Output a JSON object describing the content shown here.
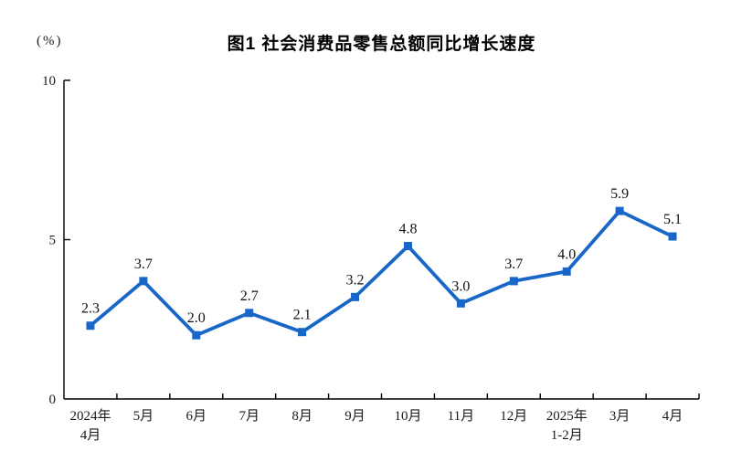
{
  "header": {
    "title": "图1 社会消费品零售总额同比增长速度",
    "unit_label": "(%)"
  },
  "chart_data": {
    "type": "line",
    "title": "图1 社会消费品零售总额同比增长速度",
    "unit": "(%)",
    "categories": [
      [
        "2024年",
        "4月"
      ],
      [
        "5月"
      ],
      [
        "6月"
      ],
      [
        "7月"
      ],
      [
        "8月"
      ],
      [
        "9月"
      ],
      [
        "10月"
      ],
      [
        "11月"
      ],
      [
        "12月"
      ],
      [
        "2025年",
        "1-2月"
      ],
      [
        "3月"
      ],
      [
        "4月"
      ]
    ],
    "values": [
      2.3,
      3.7,
      2.0,
      2.7,
      2.1,
      3.2,
      4.8,
      3.0,
      3.7,
      4.0,
      5.9,
      5.1
    ],
    "data_labels": [
      "2.3",
      "3.7",
      "2.0",
      "2.7",
      "2.1",
      "3.2",
      "4.8",
      "3.0",
      "3.7",
      "4.0",
      "5.9",
      "5.1"
    ],
    "xlabel": "",
    "ylabel": "(%)",
    "ylim": [
      0,
      10
    ],
    "yticks": [
      0,
      5,
      10
    ],
    "grid": false,
    "legend": "none",
    "marker": "square",
    "line_color": "#1866C8",
    "axis_color": "#000000",
    "text_color": "#1a1a1a"
  }
}
